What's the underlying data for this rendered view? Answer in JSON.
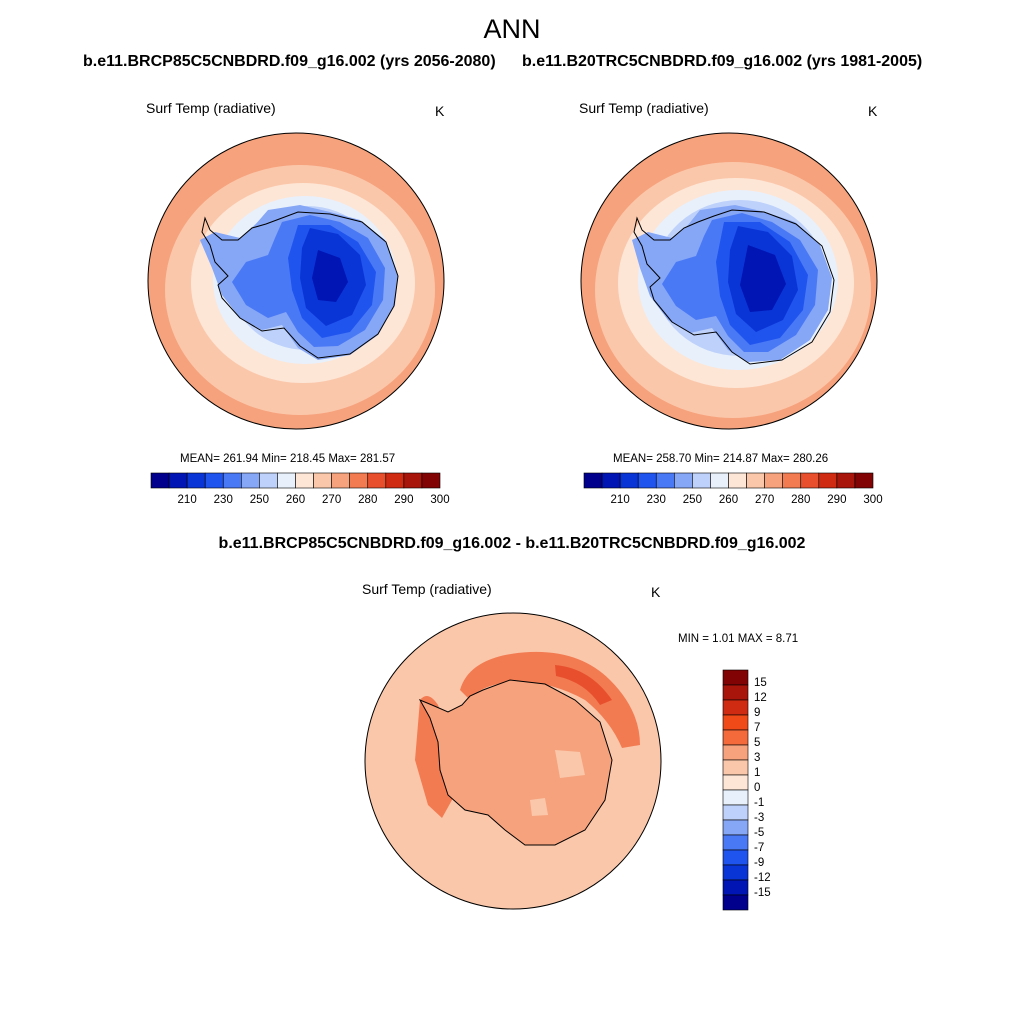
{
  "title": "ANN",
  "panels": [
    {
      "case": "b.e11.BRCP85C5CNBDRD.f09_g16.002 (yrs 2056-2080)",
      "variable": "Surf Temp (radiative)",
      "units": "K",
      "stats": "MEAN= 261.94  Min= 218.45  Max= 281.57"
    },
    {
      "case": "b.e11.B20TRC5CNBDRD.f09_g16.002 (yrs 1981-2005)",
      "variable": "Surf Temp (radiative)",
      "units": "K",
      "stats": "MEAN= 258.70  Min= 214.87  Max= 280.26"
    }
  ],
  "abs_colorbar": {
    "tick_labels": [
      "210",
      "230",
      "250",
      "260",
      "270",
      "280",
      "290",
      "300"
    ],
    "colors": [
      "#00008c",
      "#0015b4",
      "#0a35d6",
      "#2054ee",
      "#4a79f6",
      "#86a6f6",
      "#bdd1fa",
      "#e8f0fc",
      "#fde6d6",
      "#fbc7aa",
      "#f6a27d",
      "#f27b52",
      "#e8502d",
      "#cf2a12",
      "#a8150a",
      "#820303"
    ]
  },
  "diff_panel": {
    "case": "b.e11.BRCP85C5CNBDRD.f09_g16.002 - b.e11.B20TRC5CNBDRD.f09_g16.002",
    "variable": "Surf Temp (radiative)",
    "units": "K",
    "stats": "MIN =   1.01 MAX =   8.71"
  },
  "diff_colorbar": {
    "tick_labels": [
      "15",
      "12",
      "9",
      "7",
      "5",
      "3",
      "1",
      "0",
      "-1",
      "-3",
      "-5",
      "-7",
      "-9",
      "-12",
      "-15"
    ],
    "colors": [
      "#820303",
      "#a8150a",
      "#cf2a12",
      "#f04a18",
      "#f46a3a",
      "#f6a27d",
      "#fbc7aa",
      "#fde6d6",
      "#e8f0fc",
      "#bdd1fa",
      "#86a6f6",
      "#4a79f6",
      "#2054ee",
      "#0a35d6",
      "#0015b4",
      "#00008c"
    ]
  }
}
